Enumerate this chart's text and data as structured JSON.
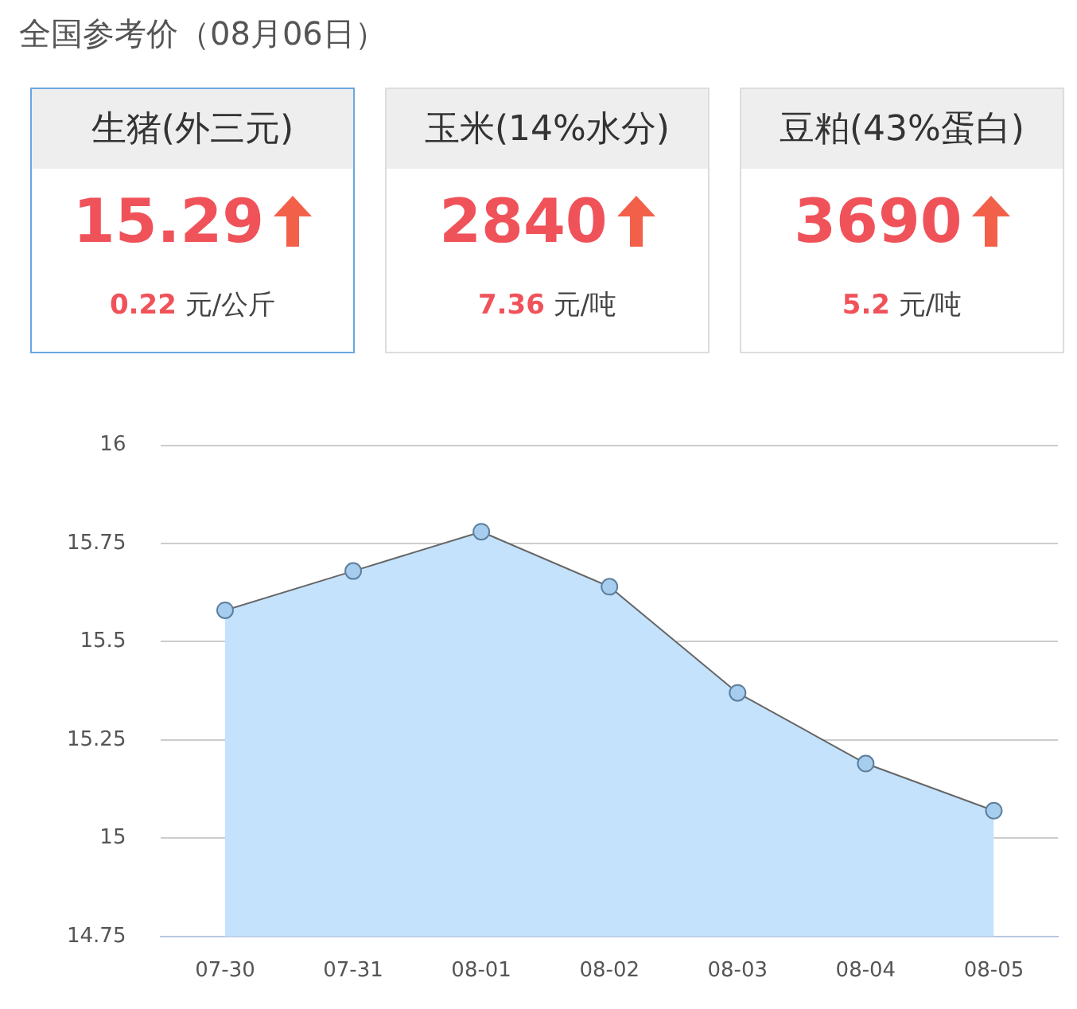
{
  "chart_data": [
    {
      "type": "other",
      "title": "全国参考价（08月06日）"
    },
    {
      "type": "other",
      "title": "生猪(外三元)",
      "annotations": [
        "15.29",
        "0.22",
        "元/公斤"
      ]
    },
    {
      "type": "other",
      "title": "玉米(14%水分)",
      "annotations": [
        "2840",
        "7.36",
        "元/吨"
      ]
    },
    {
      "type": "other",
      "title": "豆粕(43%蛋白)",
      "annotations": [
        "3690",
        "5.2",
        "元/吨"
      ]
    },
    {
      "type": "area",
      "categories": [
        "07-30",
        "07-31",
        "08-01",
        "08-02",
        "08-03",
        "08-04",
        "08-05"
      ],
      "series": [
        {
          "color": "#c4e2fc",
          "values": [
            15.58,
            15.68,
            15.78,
            15.64,
            15.37,
            15.19,
            15.07
          ]
        }
      ],
      "ylim": [
        14.75,
        16
      ],
      "yticks": [
        14.75,
        15,
        15.25,
        15.5,
        15.75,
        16
      ],
      "grid": "y",
      "legend": false,
      "marker": "circle",
      "line_style": "solid"
    }
  ]
}
